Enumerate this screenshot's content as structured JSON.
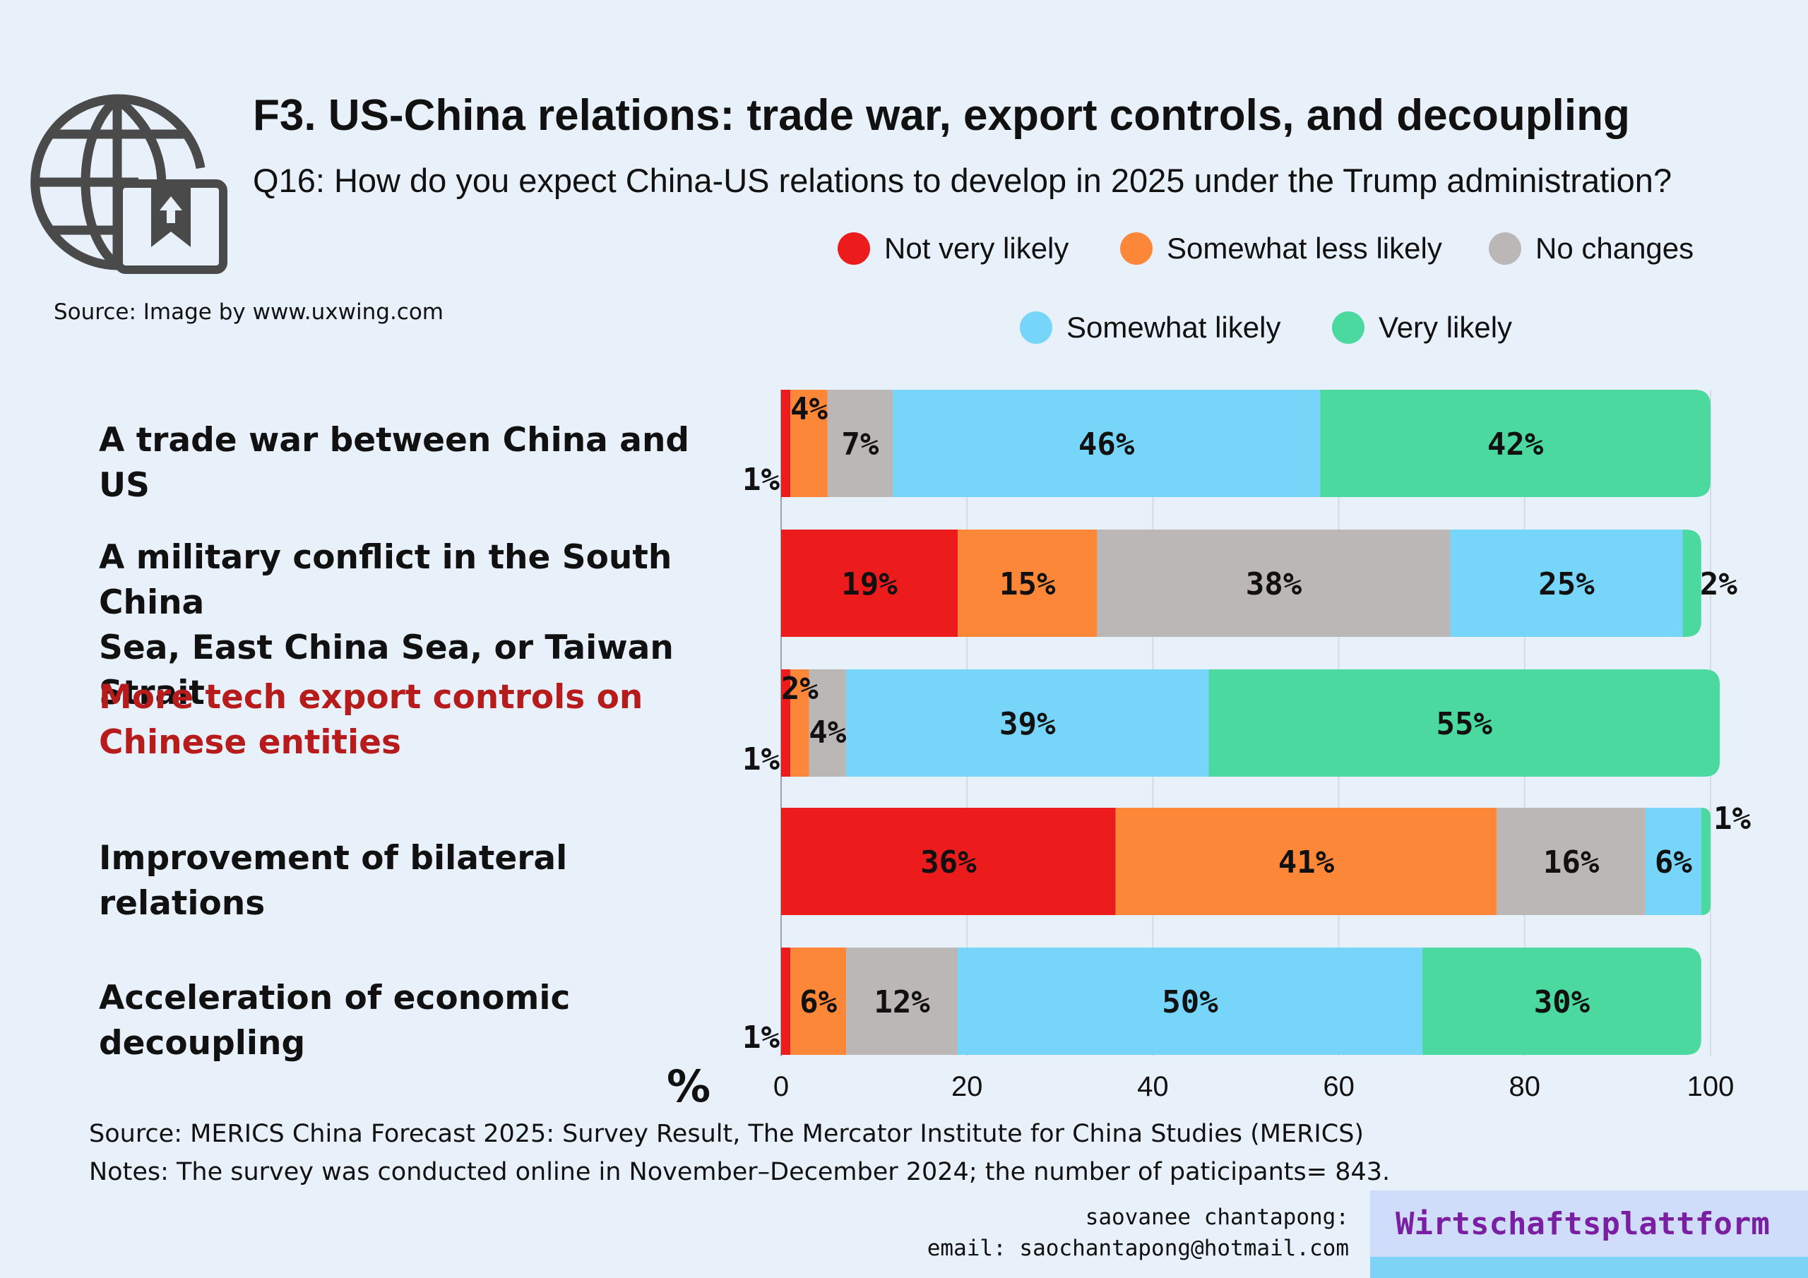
{
  "header": {
    "title": "F3. US-China relations: trade war, export controls, and decoupling",
    "subtitle": "Q16: How do you expect China-US relations to develop in 2025 under the Trump administration?",
    "icon": "globe-bookmark-icon",
    "icon_source": "Source: Image by www.uxwing.com"
  },
  "legend": [
    {
      "label": "Not very likely",
      "color": "#ec1c1c"
    },
    {
      "label": "Somewhat less likely",
      "color": "#fd8738"
    },
    {
      "label": "No changes",
      "color": "#bbb7b7"
    },
    {
      "label": "Somewhat likely",
      "color": "#76d5f8"
    },
    {
      "label": "Very likely",
      "color": "#4cd9a0"
    }
  ],
  "chart_data": {
    "type": "bar",
    "orientation": "horizontal",
    "stacked": true,
    "categories": [
      "A trade war between China and US",
      "A military conflict in the South China\nSea, East China Sea, or Taiwan Strait",
      "More tech export controls on\nChinese entities",
      "Improvement of bilateral relations",
      "Acceleration of economic decoupling"
    ],
    "highlighted_category": "More tech export controls on\nChinese entities",
    "highlight_color": "#b71c1c",
    "series": [
      {
        "name": "Not very likely",
        "color": "#ec1c1c",
        "values": [
          1,
          19,
          1,
          36,
          1
        ]
      },
      {
        "name": "Somewhat less likely",
        "color": "#fd8738",
        "values": [
          4,
          15,
          2,
          41,
          6
        ]
      },
      {
        "name": "No changes",
        "color": "#bbb7b7",
        "values": [
          7,
          38,
          4,
          16,
          12
        ]
      },
      {
        "name": "Somewhat likely",
        "color": "#76d5f8",
        "values": [
          46,
          25,
          39,
          6,
          50
        ]
      },
      {
        "name": "Very likely",
        "color": "#4cd9a0",
        "values": [
          42,
          2,
          55,
          1,
          30
        ]
      }
    ],
    "value_suffix": "%",
    "xlabel": "%",
    "xlim": [
      0,
      100
    ],
    "xticks": [
      0,
      20,
      40,
      60,
      80,
      100
    ],
    "grid": "vertical",
    "legend_position": "top-right"
  },
  "footer": {
    "source": "Source: MERICS China Forecast 2025: Survey Result, The Mercator Institute for China Studies (MERICS)",
    "notes": "Notes: The survey was conducted online in November–December 2024; the number of paticipants= 843.",
    "author_name": "saovanee chantapong:",
    "author_email": "email: saochantapong@hotmail.com",
    "brand": "Wirtschaftsplattform"
  }
}
